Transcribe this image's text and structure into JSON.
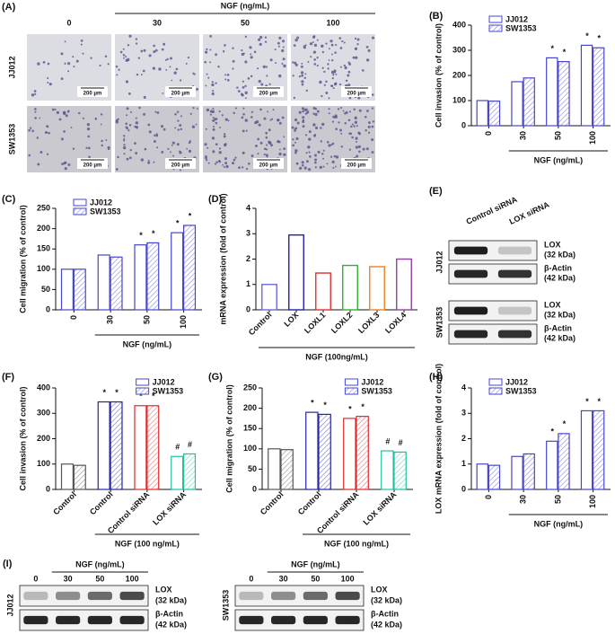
{
  "panel_A": {
    "label": "(A)",
    "group_label": "NGF (ng/mL)",
    "columns": [
      "0",
      "30",
      "50",
      "100"
    ],
    "rows": [
      "JJ012",
      "SW1353"
    ],
    "scale_bar": "200 μm"
  },
  "panel_E": {
    "label": "(E)",
    "columns": [
      "Control siRNA",
      "LOX siRNA"
    ],
    "cell_lines": [
      "JJ012",
      "SW1353"
    ],
    "bands": [
      {
        "name": "LOX",
        "size": "(32 kDa)"
      },
      {
        "name": "β-Actin",
        "size": "(42 kDa)"
      }
    ]
  },
  "panel_I": {
    "label": "(I)",
    "group_label": "NGF (ng/mL)",
    "lanes": [
      "0",
      "30",
      "50",
      "100"
    ],
    "cell_lines": [
      "JJ012",
      "SW1353"
    ],
    "bands": [
      {
        "name": "LOX",
        "size": "(32 kDa)"
      },
      {
        "name": "β-Actin",
        "size": "(42 kDa)"
      }
    ]
  },
  "chart_data": [
    {
      "label": "(B)",
      "type": "bar",
      "ylabel": "Cell invasion (% of control)",
      "xlabel": "NGF (ng/mL)",
      "categories": [
        "0",
        "30",
        "50",
        "100"
      ],
      "ylim": [
        0,
        400
      ],
      "yticks": [
        0,
        100,
        200,
        300,
        400
      ],
      "series": [
        {
          "name": "JJ012",
          "color": "#4646c8",
          "pattern": "solid",
          "values": [
            100,
            175,
            270,
            320
          ],
          "annotations": [
            null,
            null,
            "*",
            "*"
          ]
        },
        {
          "name": "SW1353",
          "color": "#4646c8",
          "pattern": "hatched",
          "values": [
            98,
            190,
            255,
            310
          ],
          "annotations": [
            null,
            null,
            "*",
            "*"
          ]
        }
      ]
    },
    {
      "label": "(C)",
      "type": "bar",
      "ylabel": "Cell migration (% of control)",
      "xlabel": "NGF (ng/mL)",
      "categories": [
        "0",
        "30",
        "50",
        "100"
      ],
      "ylim": [
        0,
        250
      ],
      "yticks": [
        0,
        50,
        100,
        150,
        200,
        250
      ],
      "series": [
        {
          "name": "JJ012",
          "color": "#4646c8",
          "pattern": "solid",
          "values": [
            100,
            135,
            160,
            190
          ],
          "annotations": [
            null,
            null,
            "*",
            "*"
          ]
        },
        {
          "name": "SW1353",
          "color": "#4646c8",
          "pattern": "hatched",
          "values": [
            100,
            130,
            165,
            208
          ],
          "annotations": [
            null,
            null,
            "*",
            "*"
          ]
        }
      ]
    },
    {
      "label": "(D)",
      "type": "bar",
      "ylabel": "mRNA expression (fold of control)",
      "xlabel": "NGF (100ng/mL)",
      "categories": [
        "Control",
        "LOX",
        "LOXL1",
        "LOXL2",
        "LOXL3",
        "LOXL4"
      ],
      "ylim": [
        0,
        4
      ],
      "yticks": [
        0,
        1,
        2,
        3,
        4
      ],
      "values": [
        1,
        2.95,
        1.45,
        1.75,
        1.7,
        2.0
      ],
      "colors": [
        "#6a6ae0",
        "#2020b0",
        "#e03030",
        "#30b030",
        "#f08020",
        "#9040a0"
      ]
    },
    {
      "label": "(F)",
      "type": "bar",
      "ylabel": "Cell invasion (% of control)",
      "xlabel": "NGF (100 ng/mL)",
      "categories": [
        "Control",
        "Control",
        "Control siRNA",
        "LOX siRNA"
      ],
      "ylim": [
        0,
        400
      ],
      "yticks": [
        0,
        100,
        200,
        300,
        400
      ],
      "category_colors": [
        "#555555",
        "#2424a8",
        "#e02828",
        "#20c0a0"
      ],
      "series": [
        {
          "name": "JJ012",
          "color": "#4646c8",
          "pattern": "solid",
          "values": [
            100,
            345,
            330,
            130
          ],
          "annotations": [
            null,
            "*",
            "*",
            "#"
          ]
        },
        {
          "name": "SW1353",
          "color": "#4646c8",
          "pattern": "hatched",
          "values": [
            95,
            345,
            330,
            140
          ],
          "annotations": [
            null,
            "*",
            "*",
            "#"
          ]
        }
      ]
    },
    {
      "label": "(G)",
      "type": "bar",
      "ylabel": "Cell migration (% of control)",
      "xlabel": "NGF (100 ng/mL)",
      "categories": [
        "Control",
        "Control",
        "Control siRNA",
        "LOX siRNA"
      ],
      "ylim": [
        0,
        250
      ],
      "yticks": [
        0,
        50,
        100,
        150,
        200,
        250
      ],
      "category_colors": [
        "#555555",
        "#2424a8",
        "#e02828",
        "#20c0a0"
      ],
      "series": [
        {
          "name": "JJ012",
          "color": "#4646c8",
          "pattern": "solid",
          "values": [
            100,
            190,
            175,
            95
          ],
          "annotations": [
            null,
            "*",
            "*",
            "#"
          ]
        },
        {
          "name": "SW1353",
          "color": "#4646c8",
          "pattern": "hatched",
          "values": [
            98,
            185,
            180,
            92
          ],
          "annotations": [
            null,
            "*",
            "*",
            "#"
          ]
        }
      ]
    },
    {
      "label": "(H)",
      "type": "bar",
      "ylabel": "LOX mRNA expression (fold of control)",
      "xlabel": "NGF (ng/mL)",
      "categories": [
        "0",
        "30",
        "50",
        "100"
      ],
      "ylim": [
        0,
        4
      ],
      "yticks": [
        0,
        1,
        2,
        3,
        4
      ],
      "series": [
        {
          "name": "JJ012",
          "color": "#4646c8",
          "pattern": "solid",
          "values": [
            1,
            1.3,
            1.9,
            3.1
          ],
          "annotations": [
            null,
            null,
            "*",
            "*"
          ]
        },
        {
          "name": "SW1353",
          "color": "#4646c8",
          "pattern": "hatched",
          "values": [
            0.95,
            1.4,
            2.2,
            3.1
          ],
          "annotations": [
            null,
            null,
            "*",
            "*"
          ]
        }
      ]
    }
  ]
}
